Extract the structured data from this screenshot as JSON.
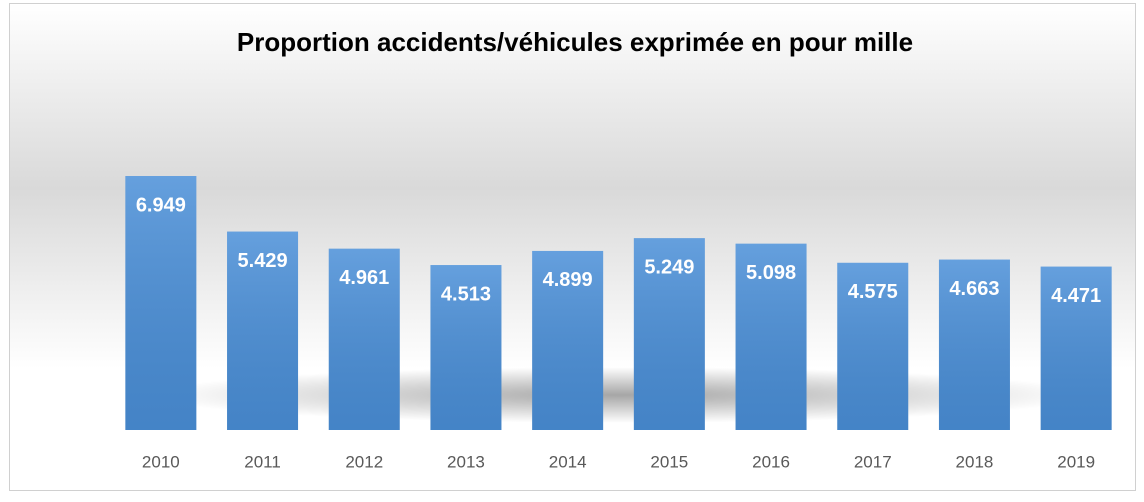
{
  "chart_data": {
    "type": "bar",
    "title": "Proportion accidents/véhicules exprimée en pour mille",
    "categories": [
      "2010",
      "2011",
      "2012",
      "2013",
      "2014",
      "2015",
      "2016",
      "2017",
      "2018",
      "2019"
    ],
    "values": [
      6.949,
      5.429,
      4.961,
      4.513,
      4.899,
      5.249,
      5.098,
      4.575,
      4.663,
      4.471
    ],
    "color": "#4a8fd8"
  }
}
